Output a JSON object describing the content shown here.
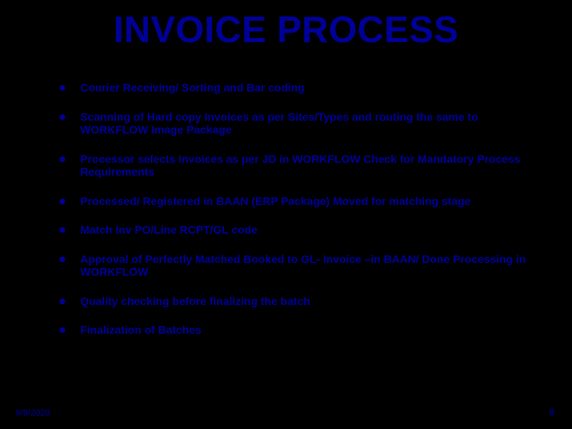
{
  "title": "INVOICE PROCESS",
  "bullets": [
    "Courier Receiving/ Sorting and Bar coding",
    "Scanning of Hard copy Invoices as per Sites/Types and routing the same to WORKFLOW Image Package",
    "Processor selects Invoices as per JD in WORKFLOW Check for Mandatory Process Requirements",
    "Processed/ Registered in BAAN (ERP Package) Moved for matching stage",
    "Match Inv PO/Line RCPT/GL code",
    "Approval of Perfectly Matched Booked to GL- Invoice –in BAAN/ Done Processing in WORKFLOW",
    "Quality checking before finalizing the batch",
    "Finalization of Batches"
  ],
  "date": "9/9/2020",
  "pageNumber": "8",
  "colors": {
    "background": "#000000",
    "text": "#000099",
    "bullet": "#000099"
  },
  "typography": {
    "title_fontsize": 46,
    "body_fontsize": 14,
    "footer_fontsize": 11
  }
}
